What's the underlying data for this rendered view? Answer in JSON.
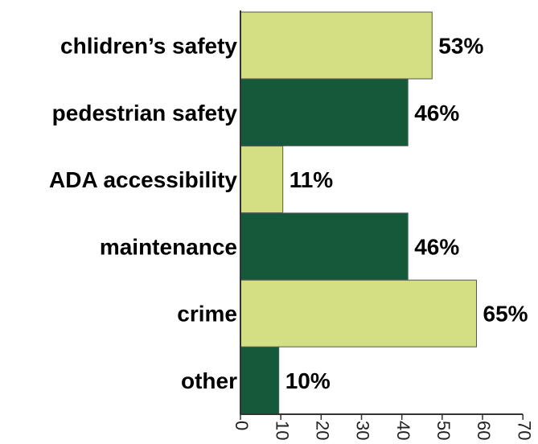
{
  "chart_data": {
    "type": "bar",
    "orientation": "horizontal",
    "categories": [
      "chlidren’s safety",
      "pedestrian safety",
      "ADA accessibility",
      "maintenance",
      "crime",
      "other"
    ],
    "values": [
      47.5,
      41.5,
      10.5,
      41.5,
      58.5,
      9.5
    ],
    "data_labels": [
      "53%",
      "46%",
      "11%",
      "46%",
      "65%",
      "10%"
    ],
    "bar_colors": [
      "#d4df83",
      "#14593a",
      "#d4df83",
      "#14593a",
      "#d4df83",
      "#14593a"
    ],
    "xlim": [
      0,
      70
    ],
    "xticks": [
      0,
      10,
      20,
      30,
      40,
      50,
      60,
      70
    ],
    "title": "",
    "xlabel": "",
    "ylabel": "",
    "grid": false,
    "legend": "none"
  }
}
